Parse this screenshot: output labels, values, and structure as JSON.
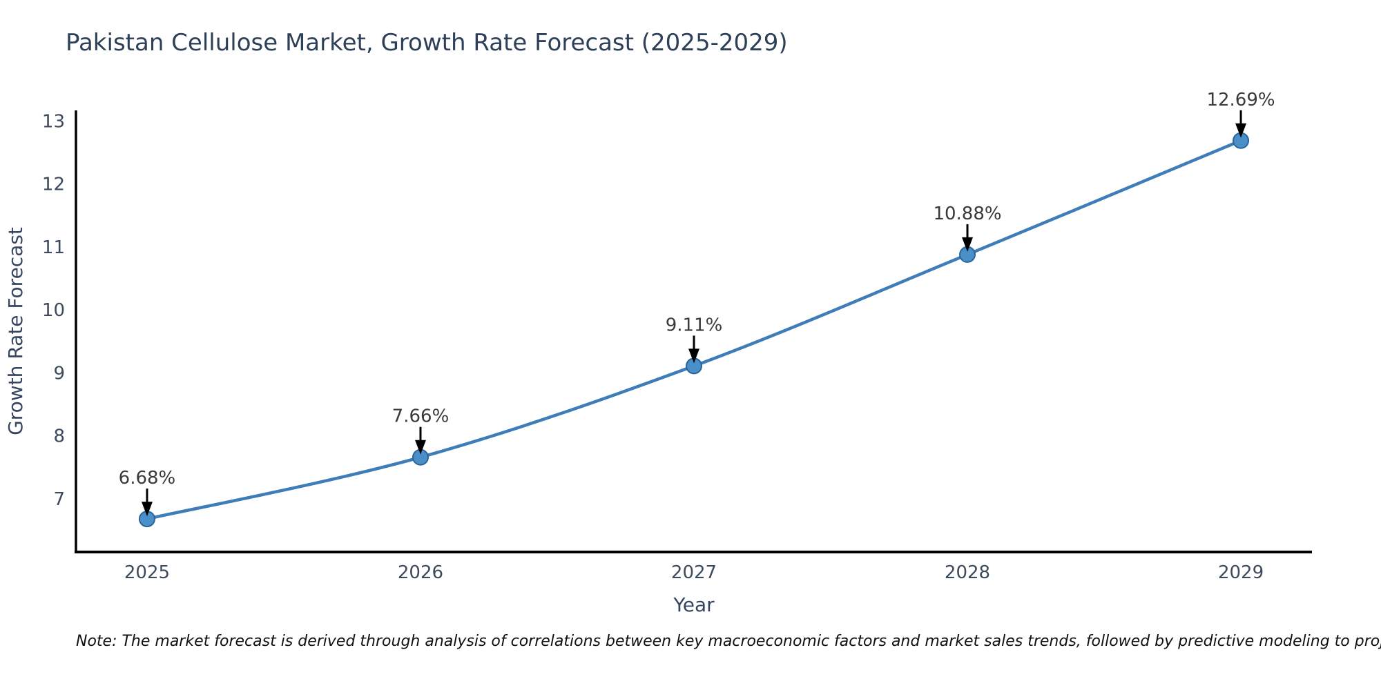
{
  "title": "Pakistan Cellulose Market, Growth Rate Forecast (2025-2029)",
  "note": "Note: The market forecast is derived through analysis of correlations between key macroeconomic factors and market sales trends, followed by predictive modeling to project future sales",
  "chart_data": {
    "type": "line",
    "title": "Pakistan Cellulose Market, Growth Rate Forecast (2025-2029)",
    "xlabel": "Year",
    "ylabel": "Growth Rate Forecast",
    "x": [
      2025,
      2026,
      2027,
      2028,
      2029
    ],
    "values": [
      6.68,
      7.66,
      9.11,
      10.88,
      12.69
    ],
    "point_labels": [
      "6.68%",
      "7.66%",
      "9.11%",
      "10.88%",
      "12.69%"
    ],
    "yticks": [
      7,
      8,
      9,
      10,
      11,
      12,
      13
    ],
    "xlim": [
      2024.74,
      2029.26
    ],
    "ylim": [
      6.155,
      13.17
    ],
    "grid": false,
    "legend": "none",
    "colors": {
      "line": "#3e7db8",
      "marker": "#4a8fc7",
      "marker_edge": "#2a6399",
      "axis": "#000000",
      "title": "#2e4057",
      "tick": "#3d4a5c",
      "annotation": "#3a3a3a",
      "arrow": "#000000"
    }
  }
}
